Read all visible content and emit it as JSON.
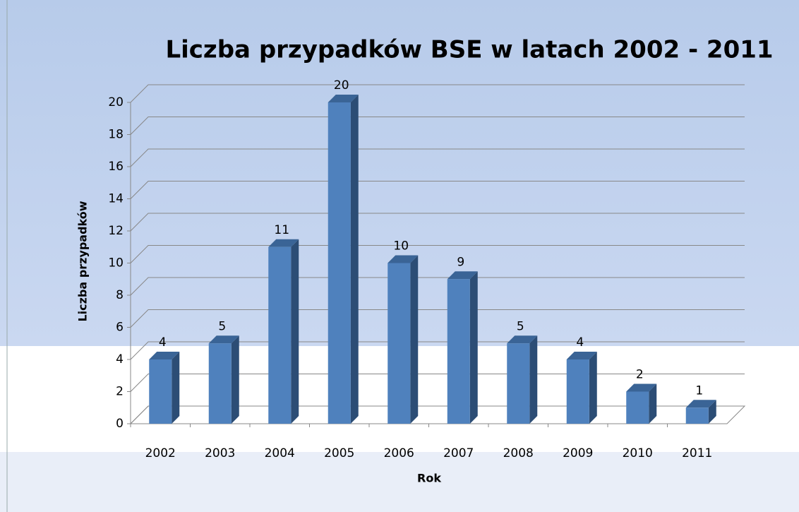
{
  "chart_data": {
    "type": "bar",
    "title": "Liczba przypadków BSE w latach 2002 - 2011",
    "x_label": "Rok",
    "y_label": "Liczba przypadków",
    "categories": [
      "2002",
      "2003",
      "2004",
      "2005",
      "2006",
      "2007",
      "2008",
      "2009",
      "2010",
      "2011"
    ],
    "values": [
      4,
      5,
      11,
      20,
      10,
      9,
      5,
      4,
      2,
      1
    ],
    "color": "#4f81bd",
    "ylim": [
      0,
      20
    ],
    "yticks": [
      0,
      2,
      4,
      6,
      8,
      10,
      12,
      14,
      16,
      18,
      20
    ],
    "grid": true
  }
}
